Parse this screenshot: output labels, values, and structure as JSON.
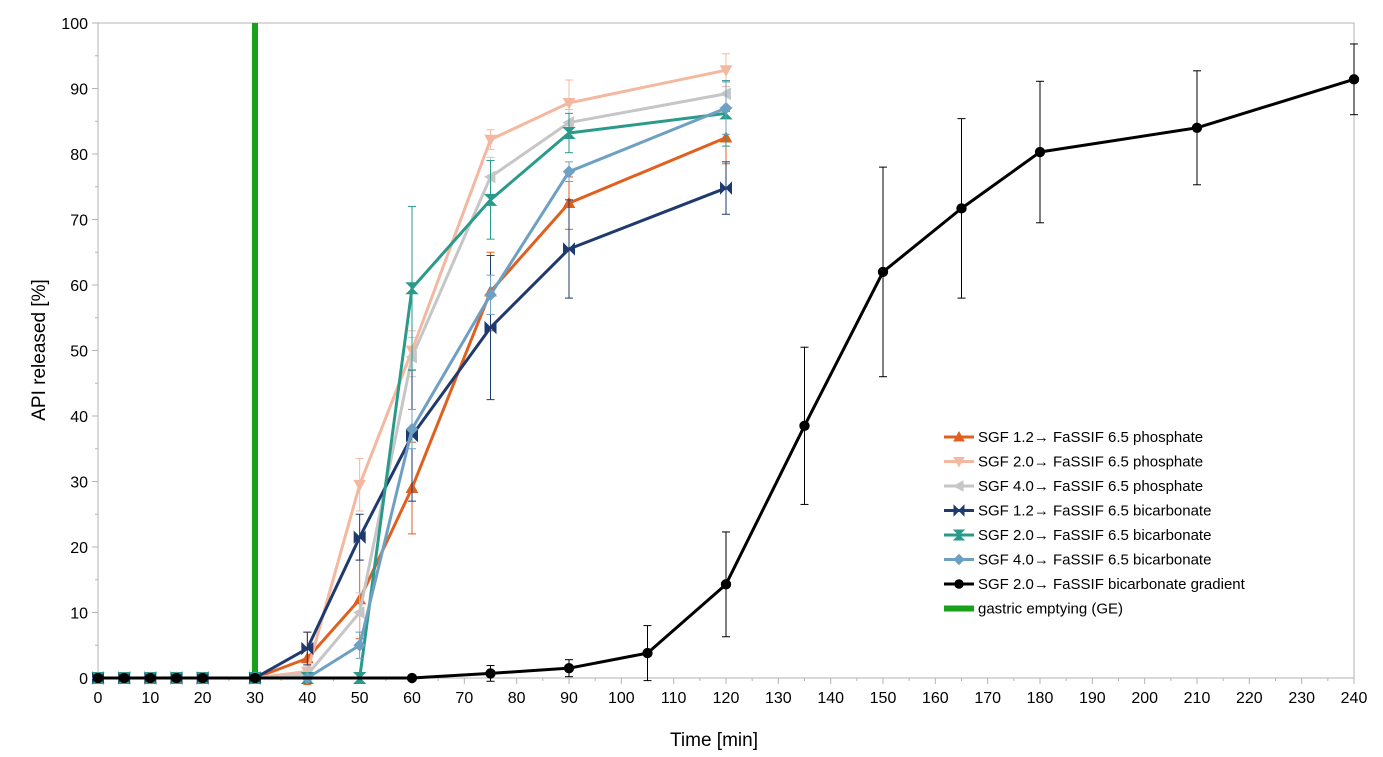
{
  "chart_data": {
    "type": "line",
    "xlabel": "Time [min]",
    "ylabel": "API released [%]",
    "xlim": [
      0,
      240
    ],
    "ylim": [
      0,
      100
    ],
    "x_ticks": [
      0,
      10,
      20,
      30,
      40,
      50,
      60,
      70,
      80,
      90,
      100,
      110,
      120,
      130,
      140,
      150,
      160,
      170,
      180,
      190,
      200,
      210,
      220,
      230,
      240
    ],
    "y_ticks": [
      0,
      10,
      20,
      30,
      40,
      50,
      60,
      70,
      80,
      90,
      100
    ],
    "grid": false,
    "legend_position": "right",
    "series": [
      {
        "name": "SGF 1.2→ FaSSIF 6.5 phosphate",
        "color": "#e0601f",
        "marker": "triangle-up",
        "x": [
          0,
          5,
          10,
          15,
          20,
          30,
          40,
          50,
          60,
          75,
          90,
          120
        ],
        "y": [
          0,
          0,
          0,
          0,
          0,
          0,
          3,
          12,
          29,
          59,
          72.5,
          82.5
        ],
        "err": [
          0,
          0,
          0,
          0,
          0,
          0,
          4,
          6,
          7,
          6,
          4,
          4
        ]
      },
      {
        "name": "SGF 2.0→ FaSSIF 6.5 phosphate",
        "color": "#f4b8a0",
        "marker": "triangle-down",
        "x": [
          0,
          5,
          10,
          15,
          20,
          30,
          40,
          50,
          60,
          75,
          90,
          120
        ],
        "y": [
          0,
          0,
          0,
          0,
          0,
          0,
          1,
          29.5,
          50,
          82.2,
          87.8,
          92.8
        ],
        "err": [
          0,
          0,
          0,
          0,
          0,
          0,
          1,
          4,
          3,
          1.5,
          3.5,
          2.5
        ]
      },
      {
        "name": "SGF 4.0→ FaSSIF 6.5 phosphate",
        "color": "#c6c6c6",
        "marker": "triangle-left",
        "x": [
          0,
          5,
          10,
          15,
          20,
          30,
          40,
          50,
          60,
          75,
          90,
          120
        ],
        "y": [
          0,
          0,
          0,
          0,
          0,
          0,
          0.5,
          10,
          49,
          76.5,
          84.8,
          89.2
        ],
        "err": [
          0,
          0,
          0,
          0,
          0,
          0,
          1,
          3,
          3,
          3,
          2,
          2
        ]
      },
      {
        "name": "SGF 1.2→ FaSSIF 6.5 bicarbonate",
        "color": "#1f3a6e",
        "marker": "bowtie",
        "x": [
          0,
          5,
          10,
          15,
          20,
          30,
          40,
          50,
          60,
          75,
          90,
          120
        ],
        "y": [
          0,
          0,
          0,
          0,
          0,
          0,
          4.5,
          21.5,
          37,
          53.5,
          65.5,
          74.8
        ],
        "err": [
          0,
          0,
          0,
          0,
          0,
          0,
          2.5,
          3.5,
          10,
          11,
          7.5,
          4
        ]
      },
      {
        "name": "SGF 2.0→ FaSSIF 6.5 bicarbonate",
        "color": "#2a9a8a",
        "marker": "hourglass",
        "x": [
          0,
          5,
          10,
          15,
          20,
          30,
          40,
          50,
          60,
          75,
          90,
          120
        ],
        "y": [
          0,
          0,
          0,
          0,
          0,
          0,
          0,
          0,
          59.5,
          73,
          83.2,
          86.2
        ],
        "err": [
          0,
          0,
          0,
          0,
          0,
          0,
          0,
          0,
          12.5,
          6,
          3,
          5
        ]
      },
      {
        "name": "SGF 4.0→ FaSSIF 6.5 bicarbonate",
        "color": "#6ea0c4",
        "marker": "diamond",
        "x": [
          0,
          5,
          10,
          15,
          20,
          30,
          40,
          50,
          60,
          75,
          90,
          120
        ],
        "y": [
          0,
          0,
          0,
          0,
          0,
          0,
          0,
          5,
          38,
          58.5,
          77.3,
          87
        ],
        "err": [
          0,
          0,
          0,
          0,
          0,
          0,
          0,
          2,
          3,
          3,
          1.5,
          4
        ]
      },
      {
        "name": "SGF 2.0→ FaSSIF bicarbonate gradient",
        "color": "#000000",
        "marker": "circle",
        "x": [
          0,
          5,
          10,
          15,
          20,
          30,
          60,
          75,
          90,
          105,
          120,
          135,
          150,
          165,
          180,
          210,
          240
        ],
        "y": [
          0,
          0,
          0,
          0,
          0,
          0,
          0,
          0.7,
          1.5,
          3.8,
          14.3,
          38.5,
          62,
          71.7,
          80.3,
          84,
          91.4
        ],
        "err": [
          0,
          0,
          0,
          0,
          0,
          0,
          0,
          1.2,
          1.3,
          4.2,
          8,
          12,
          16,
          13.7,
          10.8,
          8.7,
          5.4
        ]
      }
    ],
    "reference_line": {
      "name": "gastric emptying (GE)",
      "x": 30,
      "color": "#1aa11a"
    }
  }
}
